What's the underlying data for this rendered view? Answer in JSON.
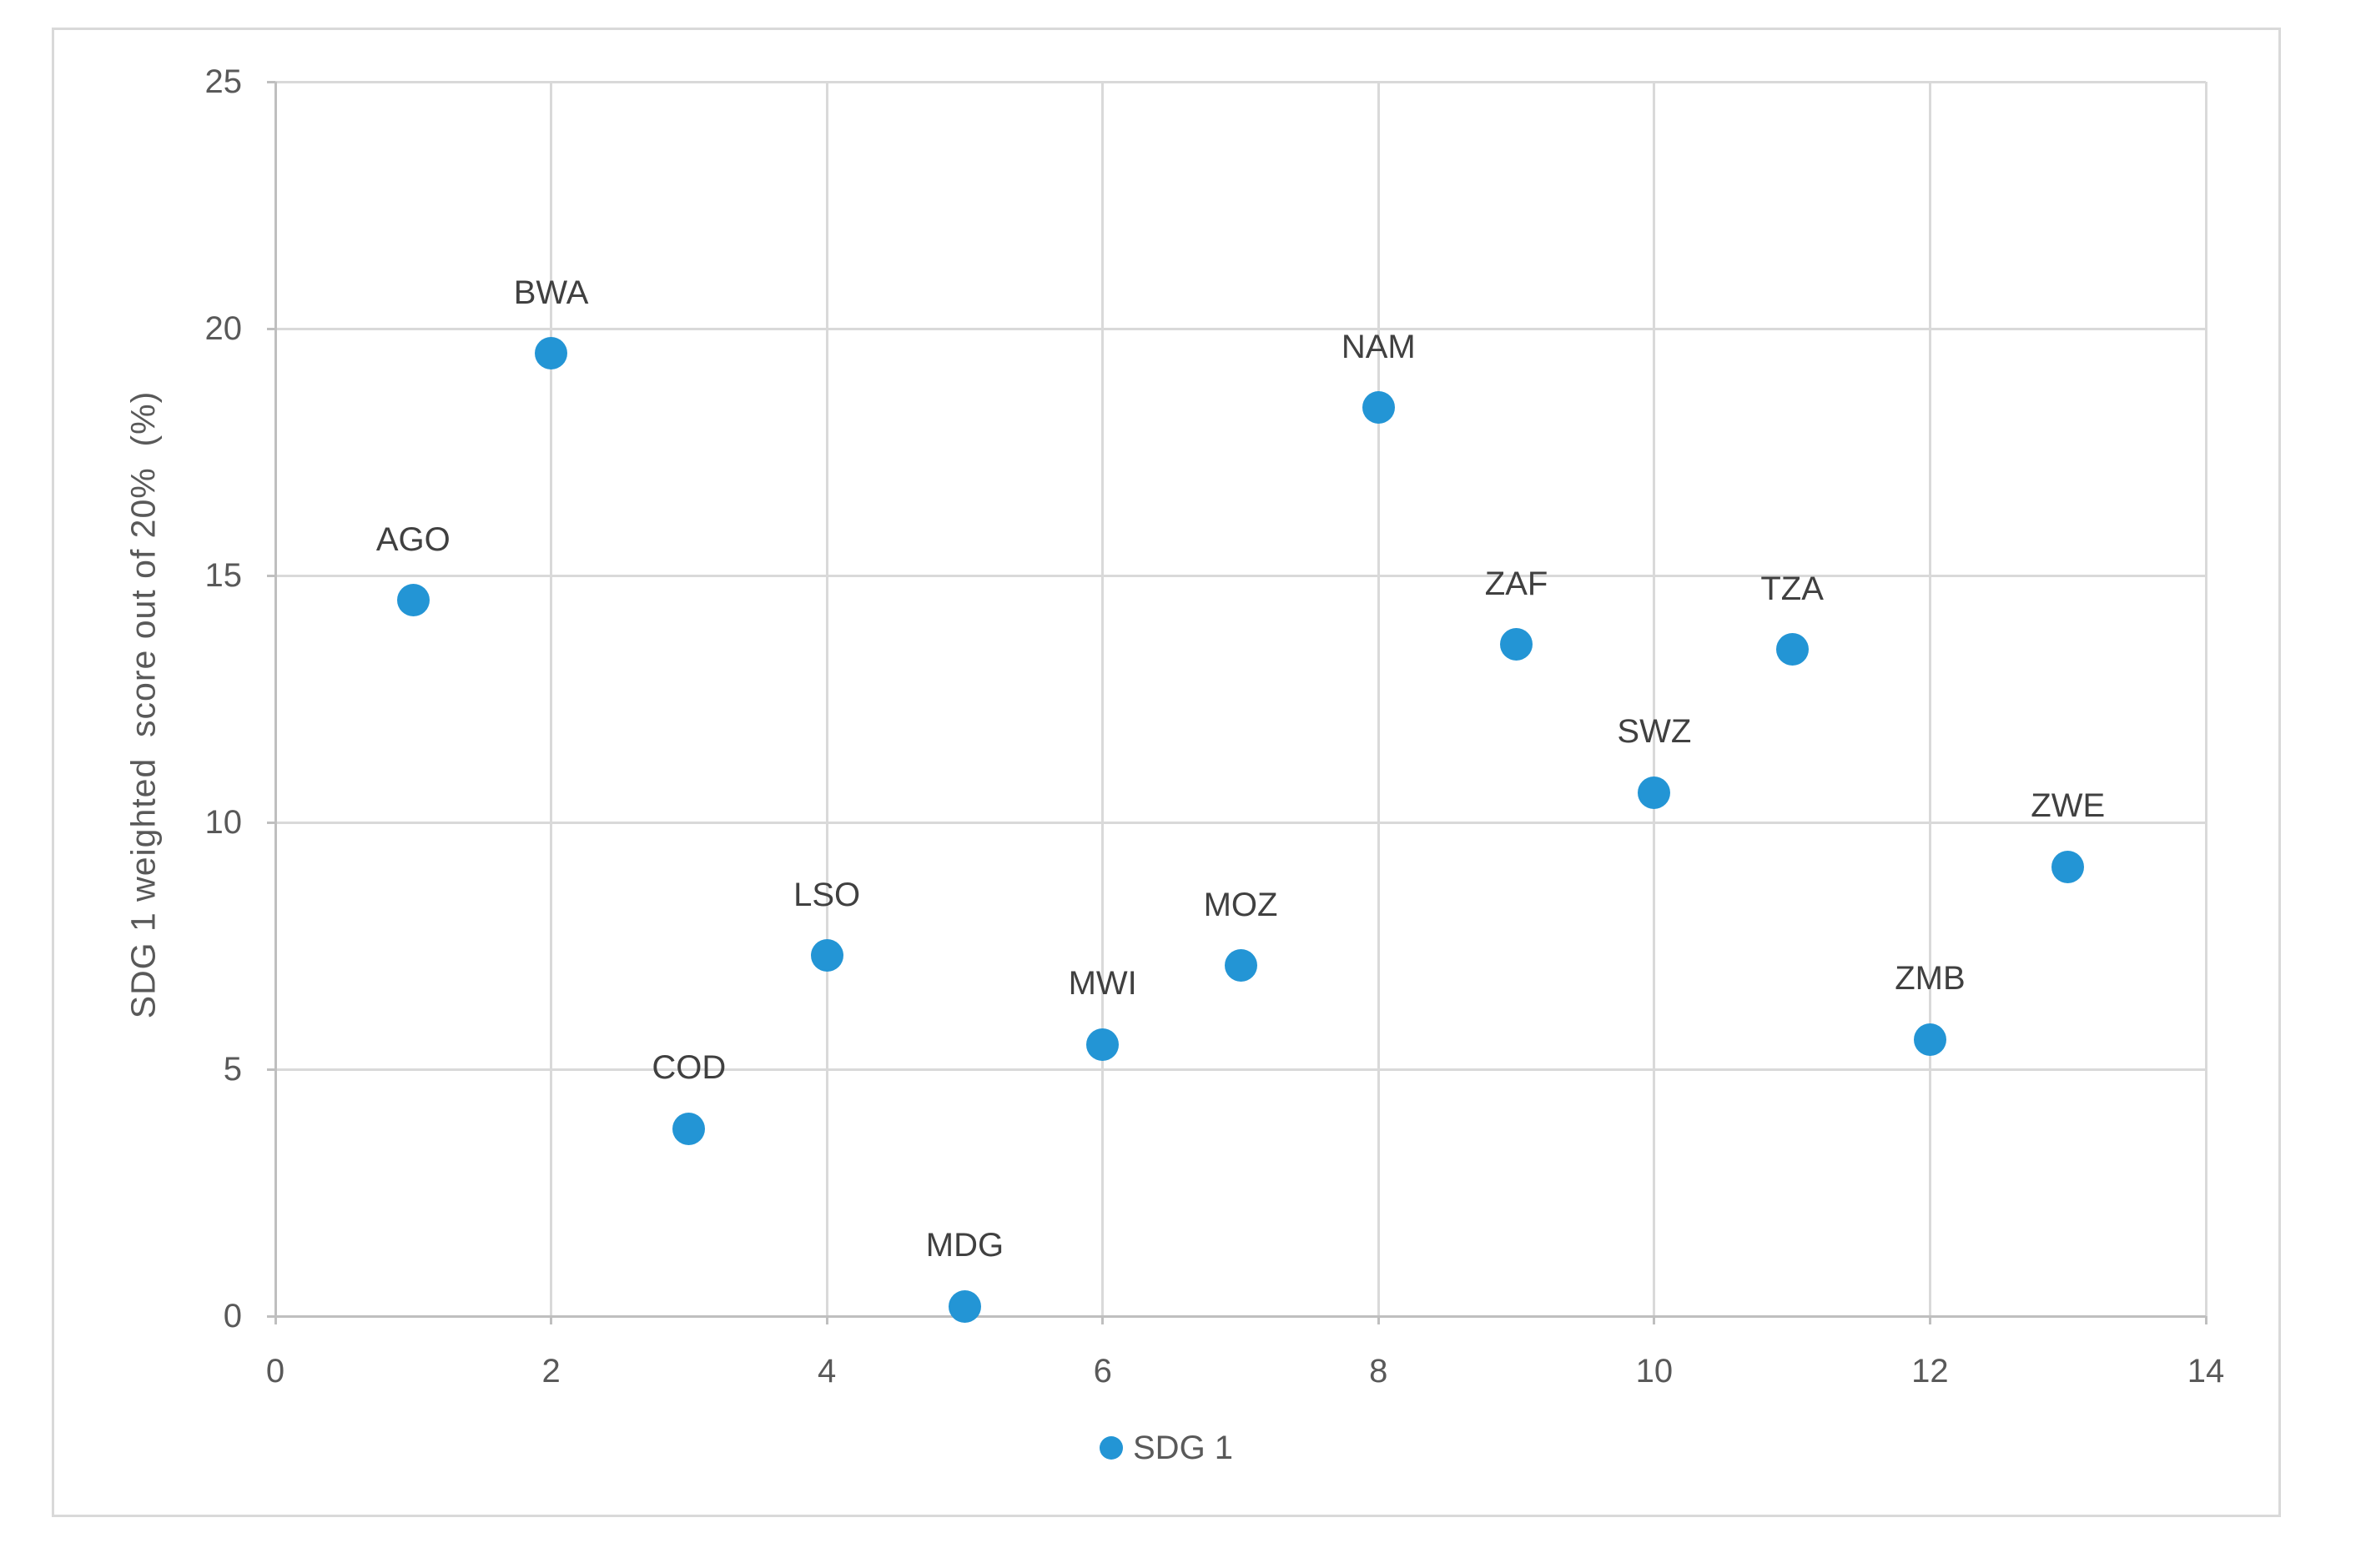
{
  "figure": {
    "background_color": "#ffffff",
    "frame_border_color": "#d9d9d9"
  },
  "colors": {
    "marker_blue": "#2395d5",
    "gridline": "#d9d9d9",
    "axis_line": "#bfbfbf",
    "tick_label": "#595959",
    "point_label": "#404040",
    "axis_title": "#595959",
    "legend_text": "#595959"
  },
  "chart_data": {
    "type": "scatter",
    "title": "",
    "xlabel": "",
    "ylabel": "SDG 1 weighted  score out of 20%  (%)",
    "xlim": [
      0,
      14
    ],
    "ylim": [
      0,
      25
    ],
    "x_ticks": [
      0,
      2,
      4,
      6,
      8,
      10,
      12,
      14
    ],
    "y_ticks": [
      0,
      5,
      10,
      15,
      20,
      25
    ],
    "grid": true,
    "legend": {
      "position": "bottom-center",
      "entries": [
        {
          "label": "SDG 1",
          "marker": "circle",
          "marker_color": "#2395d5"
        }
      ]
    },
    "series": [
      {
        "name": "SDG 1",
        "marker_color": "#2395d5",
        "points": [
          {
            "label": "AGO",
            "x": 1,
            "y": 14.5
          },
          {
            "label": "BWA",
            "x": 2,
            "y": 19.5
          },
          {
            "label": "COD",
            "x": 3,
            "y": 3.8
          },
          {
            "label": "LSO",
            "x": 4,
            "y": 7.3
          },
          {
            "label": "MDG",
            "x": 5,
            "y": 0.2
          },
          {
            "label": "MWI",
            "x": 6,
            "y": 5.5
          },
          {
            "label": "MOZ",
            "x": 7,
            "y": 7.1
          },
          {
            "label": "NAM",
            "x": 8,
            "y": 18.4
          },
          {
            "label": "ZAF",
            "x": 9,
            "y": 13.6
          },
          {
            "label": "SWZ",
            "x": 10,
            "y": 10.6
          },
          {
            "label": "TZA",
            "x": 11,
            "y": 13.5
          },
          {
            "label": "ZMB",
            "x": 12,
            "y": 5.6
          },
          {
            "label": "ZWE",
            "x": 13,
            "y": 9.1
          }
        ]
      }
    ]
  }
}
